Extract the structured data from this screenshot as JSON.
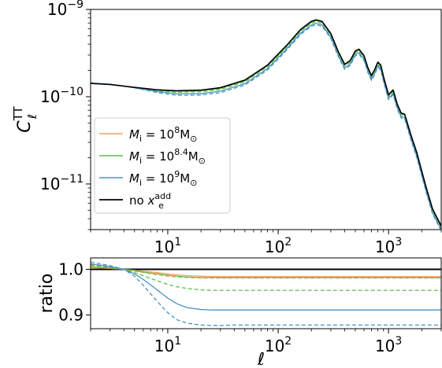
{
  "chart_data": [
    {
      "type": "line",
      "ylabel_main": "C",
      "ylabel_sub": "ℓ",
      "ylabel_sup": "TT",
      "x_scale": "log",
      "y_scale": "log",
      "xlim": [
        2,
        3000
      ],
      "ylim": [
        3e-12,
        1e-09
      ],
      "x_ticks": [
        10,
        100,
        1000
      ],
      "x_tick_labels": [
        {
          "base": "10",
          "exp": "1"
        },
        {
          "base": "10",
          "exp": "2"
        },
        {
          "base": "10",
          "exp": "3"
        }
      ],
      "y_ticks": [
        1e-11,
        1e-10,
        1e-09
      ],
      "y_tick_labels": [
        {
          "base": "10",
          "exp": "−11"
        },
        {
          "base": "10",
          "exp": "−10"
        },
        {
          "base": "10",
          "exp": "−9"
        }
      ],
      "legend_position": "lower-left",
      "legend": [
        {
          "color": "#ff9f5a",
          "style": "solid",
          "sym": "M",
          "sub": "i",
          "mid": " = 10",
          "exp": "8",
          "tail": "M",
          "tailsub": "⊙"
        },
        {
          "color": "#5fbf4f",
          "style": "solid",
          "sym": "M",
          "sub": "i",
          "mid": " = 10",
          "exp": "8.4",
          "tail": "M",
          "tailsub": "⊙"
        },
        {
          "color": "#4a93c0",
          "style": "solid",
          "sym": "M",
          "sub": "i",
          "mid": " = 10",
          "exp": "9",
          "tail": "M",
          "tailsub": "⊙"
        },
        {
          "color": "#000000",
          "style": "solid",
          "pre": "no ",
          "sym": "x",
          "sub": "e",
          "exp": "add"
        }
      ],
      "spectrum": {
        "ell": [
          2,
          3,
          5,
          8,
          12,
          20,
          30,
          50,
          80,
          120,
          160,
          200,
          220,
          250,
          300,
          350,
          400,
          450,
          500,
          540,
          600,
          650,
          700,
          750,
          800,
          850,
          900,
          1000,
          1100,
          1200,
          1300,
          1400,
          1600,
          1800,
          2000,
          2200,
          2500,
          3000
        ],
        "cl": [
          1.42e-10,
          1.38e-10,
          1.28e-10,
          1.2e-10,
          1.17e-10,
          1.19e-10,
          1.27e-10,
          1.55e-10,
          2.3e-10,
          3.9e-10,
          5.9e-10,
          7.3e-10,
          7.6e-10,
          7.3e-10,
          5.3e-10,
          3.3e-10,
          2.35e-10,
          2.6e-10,
          3.35e-10,
          3.5e-10,
          2.95e-10,
          2.15e-10,
          1.75e-10,
          2.05e-10,
          2.5e-10,
          2.3e-10,
          1.7e-10,
          1.05e-10,
          1.2e-10,
          8.2e-11,
          6.5e-11,
          6.3e-11,
          3.6e-11,
          2.3e-11,
          1.4e-11,
          9e-12,
          5.2e-12,
          3.3e-12
        ]
      },
      "series": [
        {
          "id": "baseline",
          "color": "#000000",
          "style": "solid",
          "scale": 1.0
        },
        {
          "id": "m8-solid",
          "color": "#ff9f5a",
          "style": "solid",
          "ratio_ref": 0
        },
        {
          "id": "m8-dashed",
          "color": "#ff9f5a",
          "style": "dashed",
          "ratio_ref": 1
        },
        {
          "id": "m84-solid",
          "color": "#5fbf4f",
          "style": "solid",
          "ratio_ref": 2
        },
        {
          "id": "m84-dashed",
          "color": "#5fbf4f",
          "style": "dashed",
          "ratio_ref": 3
        },
        {
          "id": "m9-solid",
          "color": "#4a93c0",
          "style": "solid",
          "ratio_ref": 4
        },
        {
          "id": "m9-dashed",
          "color": "#4a93c0",
          "style": "dashed",
          "ratio_ref": 5
        }
      ]
    },
    {
      "type": "line",
      "ylabel": "ratio",
      "xlabel": "ℓ",
      "x_scale": "log",
      "xlim": [
        2,
        3000
      ],
      "ylim": [
        0.87,
        1.025
      ],
      "y_ticks": [
        0.9,
        1.0
      ],
      "y_tick_labels": [
        "0.9",
        "1.0"
      ],
      "x_ticks": [
        10,
        100,
        1000
      ],
      "x_tick_labels": [
        {
          "base": "10",
          "exp": "1"
        },
        {
          "base": "10",
          "exp": "2"
        },
        {
          "base": "10",
          "exp": "3"
        }
      ],
      "ratio_x": [
        2,
        3,
        4,
        5,
        6,
        8,
        10,
        12,
        15,
        20,
        25,
        30,
        40,
        50,
        70,
        100,
        200,
        500,
        1000,
        3000
      ],
      "series": [
        {
          "color": "#000000",
          "style": "solid",
          "values": [
            1,
            1,
            1,
            1,
            1,
            1,
            1,
            1,
            1,
            1,
            1,
            1,
            1,
            1,
            1,
            1,
            1,
            1,
            1,
            1
          ]
        },
        {
          "color": "#ff9f5a",
          "style": "solid",
          "values": [
            1.004,
            1.002,
            1.0,
            0.998,
            0.996,
            0.993,
            0.99,
            0.988,
            0.986,
            0.985,
            0.984,
            0.984,
            0.984,
            0.984,
            0.984,
            0.984,
            0.984,
            0.984,
            0.984,
            0.984
          ]
        },
        {
          "color": "#ff9f5a",
          "style": "dashed",
          "values": [
            1.008,
            1.004,
            1.0,
            0.996,
            0.993,
            0.988,
            0.985,
            0.983,
            0.982,
            0.981,
            0.981,
            0.981,
            0.981,
            0.981,
            0.981,
            0.981,
            0.981,
            0.981,
            0.981,
            0.981
          ]
        },
        {
          "color": "#5fbf4f",
          "style": "solid",
          "values": [
            1.006,
            1.003,
            1.0,
            0.997,
            0.994,
            0.99,
            0.987,
            0.985,
            0.983,
            0.982,
            0.982,
            0.982,
            0.982,
            0.982,
            0.982,
            0.982,
            0.982,
            0.982,
            0.982,
            0.982
          ]
        },
        {
          "color": "#5fbf4f",
          "style": "dashed",
          "values": [
            1.01,
            1.005,
            1.0,
            0.993,
            0.986,
            0.975,
            0.967,
            0.962,
            0.958,
            0.955,
            0.954,
            0.954,
            0.954,
            0.954,
            0.954,
            0.954,
            0.954,
            0.954,
            0.954,
            0.954
          ]
        },
        {
          "color": "#4a93c0",
          "style": "solid",
          "values": [
            1.012,
            1.006,
            1.0,
            0.99,
            0.978,
            0.955,
            0.937,
            0.925,
            0.916,
            0.912,
            0.911,
            0.911,
            0.911,
            0.911,
            0.911,
            0.911,
            0.911,
            0.911,
            0.911,
            0.911
          ]
        },
        {
          "color": "#4a93c0",
          "style": "dashed",
          "values": [
            1.016,
            1.008,
            1.0,
            0.985,
            0.965,
            0.93,
            0.905,
            0.89,
            0.882,
            0.878,
            0.877,
            0.877,
            0.878,
            0.878,
            0.878,
            0.878,
            0.878,
            0.878,
            0.878,
            0.878
          ]
        }
      ]
    }
  ]
}
